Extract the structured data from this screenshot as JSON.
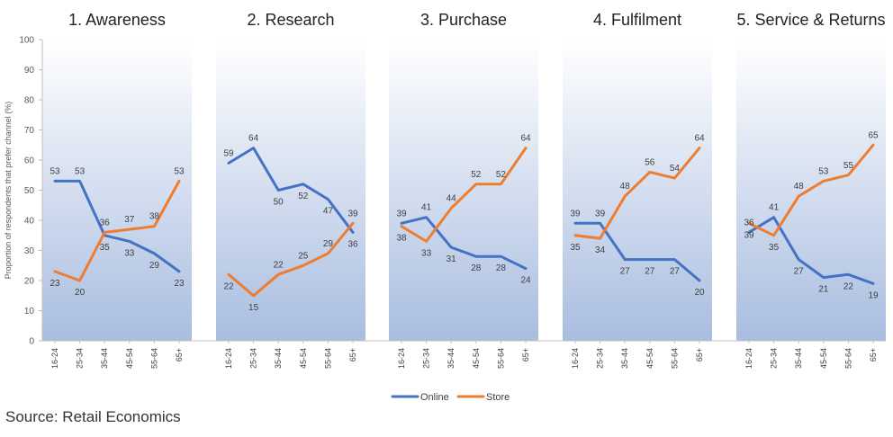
{
  "chart_data": {
    "type": "line",
    "ylabel": "Proportion of respondents that prefer channel (%)",
    "ylim": [
      0,
      100
    ],
    "yticks": [
      0,
      10,
      20,
      30,
      40,
      50,
      60,
      70,
      80,
      90,
      100
    ],
    "categories": [
      "16-24",
      "25-34",
      "35-44",
      "45-54",
      "55-64",
      "65+"
    ],
    "legend": {
      "position": "bottom-center",
      "entries": [
        "Online",
        "Store"
      ]
    },
    "colors": {
      "Online": "#4472c4",
      "Store": "#ed7d31"
    },
    "panels": [
      {
        "title": "1. Awareness",
        "series": [
          {
            "name": "Online",
            "values": [
              53,
              53,
              35,
              33,
              29,
              23
            ]
          },
          {
            "name": "Store",
            "values": [
              23,
              20,
              36,
              37,
              38,
              53
            ]
          }
        ]
      },
      {
        "title": "2. Research",
        "series": [
          {
            "name": "Online",
            "values": [
              59,
              64,
              50,
              52,
              47,
              36
            ]
          },
          {
            "name": "Store",
            "values": [
              22,
              15,
              22,
              25,
              29,
              39
            ]
          }
        ]
      },
      {
        "title": "3. Purchase",
        "series": [
          {
            "name": "Online",
            "values": [
              39,
              41,
              31,
              28,
              28,
              24
            ]
          },
          {
            "name": "Store",
            "values": [
              38,
              33,
              44,
              52,
              52,
              64
            ]
          }
        ]
      },
      {
        "title": "4. Fulfilment",
        "series": [
          {
            "name": "Online",
            "values": [
              39,
              39,
              27,
              27,
              27,
              20
            ]
          },
          {
            "name": "Store",
            "values": [
              35,
              34,
              48,
              56,
              54,
              64
            ]
          }
        ]
      },
      {
        "title": "5. Service & Returns",
        "series": [
          {
            "name": "Online",
            "values": [
              36,
              41,
              27,
              21,
              22,
              19
            ]
          },
          {
            "name": "Store",
            "values": [
              39,
              35,
              48,
              53,
              55,
              65
            ]
          }
        ]
      }
    ]
  },
  "source": "Source: Retail Economics"
}
